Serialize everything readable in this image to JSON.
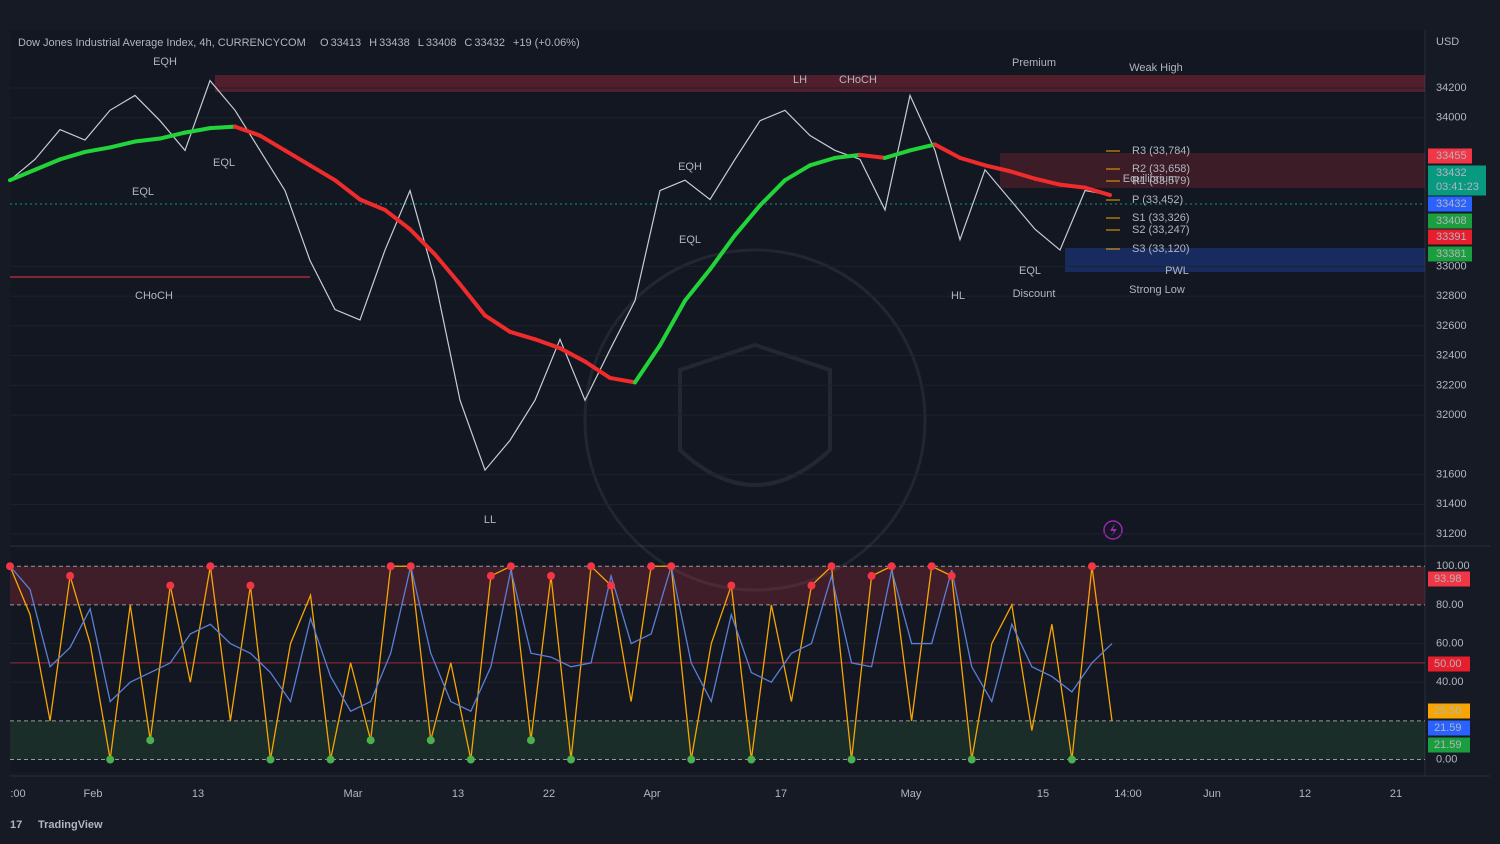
{
  "header": {
    "title": "Dow Jones Industrial Average Index, 4h, CURRENCYCOM",
    "ohlc": [
      {
        "label": "O",
        "value": 33413
      },
      {
        "label": "H",
        "value": 33438
      },
      {
        "label": "L",
        "value": 33408
      },
      {
        "label": "C",
        "value": 33432
      }
    ],
    "change": "+19 (+0.06%)",
    "currency": "USD"
  },
  "chart_data": [
    {
      "type": "line",
      "ylim": [
        34590,
        31160
      ],
      "yticks": [
        34200,
        34000,
        33000,
        32800,
        32600,
        32400,
        32200,
        32000,
        31600,
        31400,
        31200
      ],
      "price": {
        "color": "#c8ccd6",
        "values": [
          33580,
          33720,
          33920,
          33850,
          34050,
          34150,
          33980,
          33780,
          34250,
          34050,
          33780,
          33510,
          33040,
          32710,
          32640,
          33110,
          33510,
          32910,
          32100,
          31630,
          31830,
          32100,
          32510,
          32100,
          32440,
          32770,
          33510,
          33580,
          33450,
          33720,
          33980,
          34050,
          33880,
          33780,
          33720,
          33380,
          34150,
          33780,
          33180,
          33650,
          33450,
          33250,
          33110,
          33510,
          33480
        ]
      },
      "moving_average": {
        "up_color": "#22d43a",
        "down_color": "#f02b2b",
        "values": [
          33580,
          33650,
          33720,
          33770,
          33800,
          33840,
          33860,
          33900,
          33930,
          33940,
          33880,
          33780,
          33680,
          33580,
          33450,
          33380,
          33250,
          33080,
          32880,
          32670,
          32560,
          32510,
          32450,
          32360,
          32250,
          32220,
          32470,
          32770,
          32980,
          33210,
          33410,
          33580,
          33680,
          33730,
          33750,
          33730,
          33780,
          33820,
          33730,
          33680,
          33640,
          33590,
          33550,
          33530,
          33480
        ]
      }
    },
    {
      "type": "line",
      "ylim": [
        -8,
        111
      ],
      "yticks": [
        {
          "value": 100,
          "label": "100.00"
        },
        {
          "value": 80,
          "label": "80.00"
        },
        {
          "value": 60,
          "label": "60.00"
        },
        {
          "value": 40,
          "label": "40.00"
        },
        {
          "value": 0,
          "label": "0.00"
        }
      ],
      "bands": {
        "overbought": 80,
        "oversold": 20,
        "mid": 50
      },
      "high_dot_color": "#f23645",
      "low_dot_color": "#4caf50",
      "series": [
        {
          "color": "#f7a600",
          "values": [
            100,
            75,
            20,
            95,
            60,
            0,
            80,
            10,
            90,
            40,
            100,
            20,
            90,
            0,
            60,
            85,
            0,
            50,
            10,
            100,
            100,
            10,
            50,
            0,
            95,
            100,
            10,
            95,
            0,
            100,
            90,
            30,
            100,
            100,
            0,
            60,
            90,
            0,
            80,
            30,
            90,
            100,
            0,
            95,
            100,
            20,
            100,
            95,
            0,
            60,
            80,
            15,
            70,
            0,
            100,
            20
          ]
        },
        {
          "color": "#5b7fd6",
          "values": [
            100,
            88,
            48,
            58,
            78,
            30,
            40,
            45,
            50,
            65,
            70,
            60,
            55,
            45,
            30,
            73,
            43,
            25,
            30,
            55,
            100,
            55,
            30,
            25,
            48,
            98,
            55,
            53,
            48,
            50,
            95,
            60,
            65,
            100,
            50,
            30,
            75,
            45,
            40,
            55,
            60,
            95,
            50,
            48,
            98,
            60,
            60,
            98,
            48,
            30,
            70,
            48,
            43,
            35,
            50,
            60
          ]
        }
      ]
    }
  ],
  "price_labels": [
    {
      "text": "33455",
      "color": "#f23645"
    },
    {
      "text": "33432",
      "color": "#089981"
    },
    {
      "text": "33432",
      "color": "#2962ff"
    },
    {
      "text": "33408",
      "color": "#1b9e3e"
    },
    {
      "text": "33391",
      "color": "#e91e2d"
    },
    {
      "text": "33381",
      "color": "#1b9e3e"
    }
  ],
  "countdown": "03:41:23",
  "pivots": [
    "R3 (33,784)",
    "R2 (33,658)",
    "R1 (33,579)",
    "P (33,452)",
    "S1 (33,326)",
    "S2 (33,247)",
    "S3 (33,120)"
  ],
  "pivot_color": "#f7a600",
  "annotations": [
    {
      "text": "EQH",
      "color": "#f23645"
    },
    {
      "text": "LH",
      "color": "#f23645"
    },
    {
      "text": "CHoCH",
      "color": "#26a69a"
    },
    {
      "text": "EQL",
      "color": "#26a69a"
    },
    {
      "text": "EQL",
      "color": "#26a69a"
    },
    {
      "text": "CHoCH",
      "color": "#f23645"
    },
    {
      "text": "EQH",
      "color": "#f23645"
    },
    {
      "text": "EQL",
      "color": "#26a69a"
    },
    {
      "text": "LL",
      "color": "#26a69a"
    },
    {
      "text": "HL",
      "color": "#26a69a"
    },
    {
      "text": "EQL",
      "color": "#26a69a"
    },
    {
      "text": "Premium",
      "color": "#f23645"
    },
    {
      "text": "Discount",
      "color": "#26a69a"
    },
    {
      "text": "Equilibrium",
      "color": "#9598a1"
    },
    {
      "text": "PWL",
      "color": "#2962ff"
    },
    {
      "text": "Weak High",
      "color": "#f23645"
    },
    {
      "text": "Strong Low",
      "color": "#26a69a"
    }
  ],
  "stoch_labels": [
    {
      "text": "93.98",
      "color": "#f23645"
    },
    {
      "text": "50.00",
      "color": "#e91e2d"
    },
    {
      "text": "25.50",
      "color": "#f7a600"
    },
    {
      "text": "21.59",
      "color": "#2962ff"
    },
    {
      "text": "21.59",
      "color": "#1b9e3e"
    }
  ],
  "x_labels": [
    ":00",
    "Feb",
    "13",
    "Mar",
    "13",
    "22",
    "Apr",
    "17",
    "May",
    "15",
    "14:00",
    "Jun",
    "12",
    "21"
  ],
  "footer": {
    "brand": "TradingView"
  }
}
